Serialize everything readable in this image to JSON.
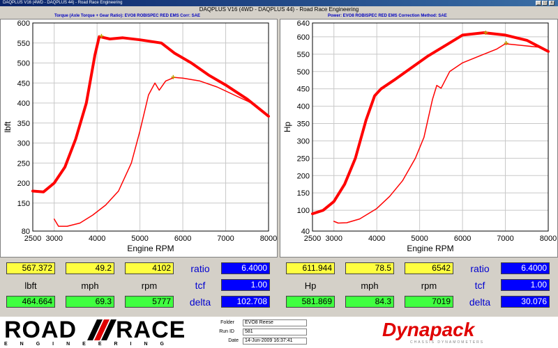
{
  "window": {
    "title": "DAQPLUS V16 (4WD - DAQPLUS 44) - Road Race Engineering"
  },
  "header": {
    "title": "DAQPLUS V16 (4WD - DAQPLUS 44) - Road Race Engineering",
    "left_sub": "Torque (Axle Torque + Gear Ratio): EVO8 ROBISPEC RED EMS      Corr: SAE",
    "right_sub": "Power: EVO8 ROBISPEC RED EMS      Correction Method: SAE"
  },
  "swatch_colors": [
    "#ff0000",
    "#00c000",
    "#0080ff",
    "#ff00ff",
    "#00ffff",
    "#ff8000"
  ],
  "chart_data": [
    {
      "type": "line",
      "xlabel": "Engine RPM",
      "ylabel": "lbft",
      "xlim": [
        2500,
        8000
      ],
      "ylim": [
        80,
        600
      ],
      "xticks": [
        2500,
        3000,
        4000,
        5000,
        6000,
        7000,
        8000
      ],
      "yticks": [
        80,
        150,
        200,
        250,
        300,
        350,
        400,
        450,
        500,
        550,
        600
      ],
      "grid": true,
      "series": [
        {
          "color": "#ff0000",
          "width": 4,
          "x": [
            2500,
            2750,
            3000,
            3250,
            3500,
            3750,
            3950,
            4050,
            4300,
            4600,
            5000,
            5500,
            5800,
            6200,
            6600,
            7000,
            7500,
            8000
          ],
          "y": [
            180,
            178,
            200,
            240,
            310,
            400,
            520,
            566,
            560,
            563,
            558,
            550,
            525,
            500,
            470,
            445,
            410,
            367
          ]
        },
        {
          "color": "#ff0000",
          "width": 1.5,
          "x": [
            3000,
            3100,
            3300,
            3600,
            3900,
            4200,
            4500,
            4800,
            5000,
            5200,
            5350,
            5450,
            5600,
            5800,
            6000,
            6400,
            6800,
            7200,
            7600,
            8000
          ],
          "y": [
            110,
            92,
            92,
            100,
            120,
            145,
            180,
            250,
            330,
            420,
            450,
            432,
            455,
            464,
            462,
            455,
            440,
            420,
            400,
            368
          ]
        }
      ],
      "marker_a": {
        "x": 4102,
        "y": 567.372
      },
      "marker_b": {
        "x": 5777,
        "y": 464.664
      }
    },
    {
      "type": "line",
      "xlabel": "Engine RPM",
      "ylabel": "Hp",
      "xlim": [
        2500,
        8000
      ],
      "ylim": [
        40,
        640
      ],
      "xticks": [
        2500,
        3000,
        4000,
        5000,
        6000,
        7000,
        8000
      ],
      "yticks": [
        40,
        100,
        150,
        200,
        250,
        300,
        350,
        400,
        450,
        500,
        550,
        600,
        640
      ],
      "grid": true,
      "series": [
        {
          "color": "#ff0000",
          "width": 4,
          "x": [
            2500,
            2750,
            3000,
            3250,
            3500,
            3750,
            3950,
            4100,
            4400,
            4800,
            5200,
            5600,
            6000,
            6500,
            7000,
            7500,
            8000
          ],
          "y": [
            90,
            100,
            125,
            175,
            250,
            360,
            430,
            450,
            475,
            510,
            545,
            575,
            605,
            612,
            605,
            590,
            558
          ]
        },
        {
          "color": "#ff0000",
          "width": 1.5,
          "x": [
            3000,
            3100,
            3300,
            3600,
            4000,
            4300,
            4600,
            4900,
            5100,
            5300,
            5400,
            5500,
            5700,
            6000,
            6400,
            6800,
            7000,
            7400,
            7800,
            8000
          ],
          "y": [
            68,
            63,
            64,
            75,
            105,
            140,
            185,
            250,
            310,
            420,
            460,
            452,
            500,
            525,
            545,
            565,
            580,
            575,
            570,
            558
          ]
        }
      ],
      "marker_a": {
        "x": 6542,
        "y": 611.944
      },
      "marker_b": {
        "x": 7019,
        "y": 581.869
      }
    }
  ],
  "readouts": {
    "left": {
      "peak1": "567.372",
      "speed1": "49.2",
      "rpm1": "4102",
      "unit": "lbft",
      "speed_unit": "mph",
      "rpm_unit": "rpm",
      "peak2": "464.664",
      "speed2": "69.3",
      "rpm2": "5777",
      "ratio_label": "ratio",
      "ratio": "6.4000",
      "tcf_label": "tcf",
      "tcf": "1.00",
      "delta_label": "delta",
      "delta": "102.708"
    },
    "right": {
      "peak1": "611.944",
      "speed1": "78.5",
      "rpm1": "6542",
      "unit": "Hp",
      "speed_unit": "mph",
      "rpm_unit": "rpm",
      "peak2": "581.869",
      "speed2": "84.3",
      "rpm2": "7019",
      "ratio_label": "ratio",
      "ratio": "6.4000",
      "tcf_label": "tcf",
      "tcf": "1.00",
      "delta_label": "delta",
      "delta": "30.076"
    }
  },
  "footer": {
    "logo_left_1": "ROAD",
    "logo_left_2": "RACE",
    "logo_left_sub": "ENGINEERING",
    "folder_label": "Folder",
    "folder": "EVO8 Reese",
    "runid_label": "Run ID",
    "runid": "581",
    "date_label": "Date",
    "date": "14-Jun-2009  16:37:41",
    "logo_right": "Dynapack",
    "logo_right_sub": "CHASSIS DYNAMOMETERS"
  }
}
